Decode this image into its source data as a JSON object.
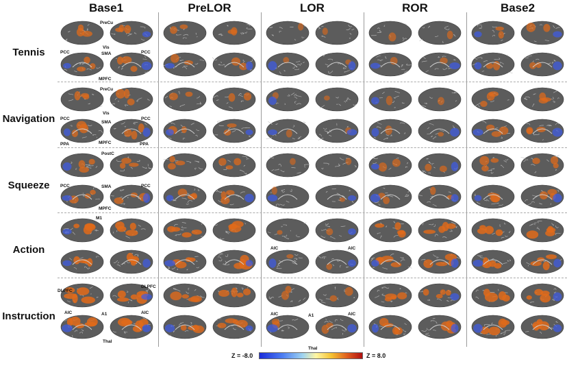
{
  "columns": [
    "Base1",
    "PreLOR",
    "LOR",
    "ROR",
    "Base2"
  ],
  "rows": [
    "Tennis",
    "Navigation",
    "Squeeze",
    "Action",
    "Instruction"
  ],
  "colorbar": {
    "min_label": "Z = -8.0",
    "max_label": "Z = 8.0"
  },
  "colors": {
    "negative": "#3d5be8",
    "positive": "#e06a1a",
    "cortex": "#5c5c5c"
  },
  "annotations": {
    "tennis": [
      "PreCu",
      "Vis",
      "PCC",
      "SMA",
      "PCC",
      "MPFC"
    ],
    "navigation": [
      "PreCu",
      "Vis",
      "PCC",
      "SMA",
      "PCC",
      "PPA",
      "MPFC",
      "PPA"
    ],
    "squeeze": [
      "PostC",
      "PCC",
      "SMA",
      "PCC",
      "MPFC"
    ],
    "action_base1": [
      "M1"
    ],
    "action_lor": [
      "AIC",
      "AIC"
    ],
    "instruction_base1": [
      "DLPFC",
      "DLPFC",
      "AIC",
      "A1",
      "AIC",
      "Thal"
    ],
    "instruction_lor": [
      "AIC",
      "A1",
      "AIC",
      "Thal"
    ]
  },
  "activation_levels": {
    "Tennis": [
      0.55,
      0.45,
      0.12,
      0.25,
      0.45
    ],
    "Navigation": [
      0.55,
      0.45,
      0.1,
      0.2,
      0.5
    ],
    "Squeeze": [
      0.55,
      0.5,
      0.1,
      0.35,
      0.5
    ],
    "Action": [
      0.85,
      0.8,
      0.2,
      0.75,
      0.85
    ],
    "Instruction": [
      0.9,
      0.7,
      0.35,
      0.7,
      0.85
    ]
  }
}
